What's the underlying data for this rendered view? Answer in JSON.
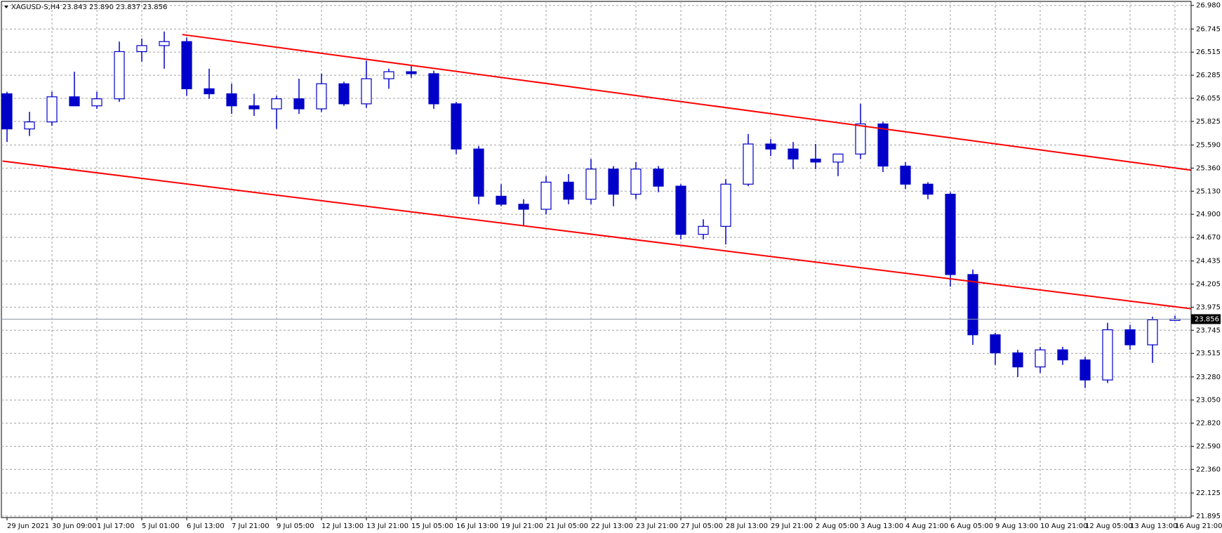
{
  "chart_data": {
    "type": "candlestick",
    "title": "XAGUSD-S,H4  23.843 23.890 23.837 23.856",
    "color": "#0000c8",
    "categories": [
      "29 Jun 2021",
      null,
      "30 Jun 09:00",
      null,
      "1 Jul 17:00",
      null,
      "5 Jul 01:00",
      null,
      "6 Jul 13:00",
      null,
      "7 Jul 21:00",
      null,
      "9 Jul 05:00",
      null,
      "12 Jul 13:00",
      null,
      "13 Jul 21:00",
      null,
      "15 Jul 05:00",
      null,
      "16 Jul 13:00",
      null,
      "19 Jul 21:00",
      null,
      "21 Jul 05:00",
      null,
      "22 Jul 13:00",
      null,
      "23 Jul 21:00",
      null,
      "27 Jul 05:00",
      null,
      "28 Jul 13:00",
      null,
      "29 Jul 21:00",
      null,
      "2 Aug 05:00",
      null,
      "3 Aug 13:00",
      null,
      "4 Aug 21:00",
      null,
      "6 Aug 05:00",
      null,
      "9 Aug 13:00",
      null,
      "10 Aug 21:00",
      null,
      "12 Aug 05:00",
      null,
      "13 Aug 13:00",
      null,
      "16 Aug 21:00"
    ],
    "open": [
      26.1,
      25.75,
      25.82,
      26.07,
      25.98,
      26.05,
      26.52,
      26.58,
      26.62,
      26.15,
      26.1,
      25.98,
      25.95,
      26.05,
      25.95,
      26.2,
      26.0,
      26.25,
      26.32,
      26.3,
      26.0,
      25.55,
      25.08,
      25.0,
      24.95,
      25.22,
      25.05,
      25.35,
      25.1,
      25.35,
      25.18,
      24.7,
      24.78,
      25.2,
      25.6,
      25.55,
      25.45,
      25.42,
      25.5,
      25.8,
      25.38,
      25.2,
      25.1,
      24.3,
      23.7,
      23.52,
      23.38,
      23.55,
      23.45,
      23.25,
      23.75,
      23.6,
      23.843
    ],
    "high": [
      26.12,
      25.92,
      26.12,
      26.32,
      26.12,
      26.62,
      26.65,
      26.72,
      26.66,
      26.35,
      26.2,
      26.1,
      26.08,
      26.25,
      26.3,
      26.22,
      26.43,
      26.35,
      26.38,
      26.33,
      26.02,
      25.58,
      25.2,
      25.05,
      25.28,
      25.3,
      25.45,
      25.38,
      25.42,
      25.38,
      25.2,
      24.85,
      25.25,
      25.7,
      25.65,
      25.62,
      25.6,
      25.5,
      26.0,
      25.82,
      25.42,
      25.22,
      25.12,
      24.35,
      23.72,
      23.55,
      23.58,
      23.58,
      23.48,
      23.82,
      23.8,
      23.88,
      23.89
    ],
    "low": [
      25.62,
      25.68,
      25.78,
      26.02,
      25.95,
      26.02,
      26.42,
      26.35,
      26.08,
      26.05,
      25.9,
      25.88,
      25.75,
      25.9,
      25.92,
      25.98,
      25.96,
      26.15,
      26.26,
      25.95,
      25.5,
      25.0,
      24.98,
      24.78,
      24.9,
      25.0,
      25.0,
      24.98,
      25.05,
      25.12,
      24.65,
      24.65,
      24.6,
      25.18,
      25.48,
      25.35,
      25.35,
      25.28,
      25.45,
      25.32,
      25.15,
      25.05,
      24.18,
      23.6,
      23.4,
      23.28,
      23.32,
      23.4,
      23.17,
      23.22,
      23.55,
      23.42,
      23.837
    ],
    "close": [
      25.75,
      25.82,
      26.07,
      25.98,
      26.05,
      26.52,
      26.58,
      26.62,
      26.15,
      26.1,
      25.98,
      25.95,
      26.05,
      25.95,
      26.2,
      26.0,
      26.25,
      26.32,
      26.3,
      26.0,
      25.55,
      25.08,
      25.0,
      24.95,
      25.22,
      25.05,
      25.35,
      25.1,
      25.35,
      25.18,
      24.7,
      24.78,
      25.2,
      25.6,
      25.55,
      25.45,
      25.42,
      25.5,
      25.8,
      25.38,
      25.2,
      25.1,
      24.3,
      23.7,
      23.52,
      23.38,
      23.55,
      23.45,
      23.25,
      23.75,
      23.6,
      23.85,
      23.856
    ],
    "ylim": [
      21.88,
      27.02
    ],
    "yticks": [
      {
        "value": 26.98,
        "label": "26.980"
      },
      {
        "value": 26.745,
        "label": "26.745"
      },
      {
        "value": 26.515,
        "label": "26.515"
      },
      {
        "value": 26.285,
        "label": "26.285"
      },
      {
        "value": 26.055,
        "label": "26.055"
      },
      {
        "value": 25.825,
        "label": "25.825"
      },
      {
        "value": 25.59,
        "label": "25.590"
      },
      {
        "value": 25.36,
        "label": "25.360"
      },
      {
        "value": 25.13,
        "label": "25.130"
      },
      {
        "value": 24.9,
        "label": "24.900"
      },
      {
        "value": 24.67,
        "label": "24.670"
      },
      {
        "value": 24.435,
        "label": "24.435"
      },
      {
        "value": 24.205,
        "label": "24.205"
      },
      {
        "value": 23.975,
        "label": "23.975"
      },
      {
        "value": 23.745,
        "label": "23.745"
      },
      {
        "value": 23.515,
        "label": "23.515"
      },
      {
        "value": 23.28,
        "label": "23.280"
      },
      {
        "value": 23.05,
        "label": "23.050"
      },
      {
        "value": 22.82,
        "label": "22.820"
      },
      {
        "value": 22.59,
        "label": "22.590"
      },
      {
        "value": 22.36,
        "label": "22.360"
      },
      {
        "value": 22.125,
        "label": "22.125"
      },
      {
        "value": 21.895,
        "label": "21.895"
      }
    ],
    "grid": true,
    "trendlines": [
      {
        "color": "#ff0000",
        "x": [
          7.8,
          52.7
        ],
        "y": [
          26.69,
          25.34
        ]
      },
      {
        "color": "#ff0000",
        "x": [
          -0.2,
          52.7
        ],
        "y": [
          25.43,
          23.96
        ]
      }
    ]
  }
}
